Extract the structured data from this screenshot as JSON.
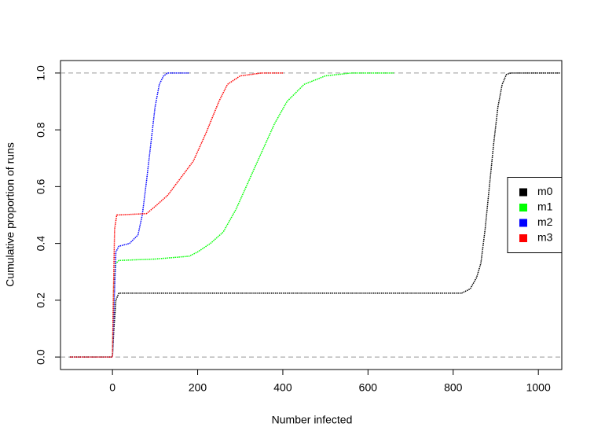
{
  "chart_data": {
    "type": "line",
    "xlabel": "Number infected",
    "ylabel": "Cumulative proportion of runs",
    "xlim": [
      -122,
      1055
    ],
    "ylim": [
      -0.044,
      1.044
    ],
    "xticks": [
      0,
      200,
      400,
      600,
      800,
      1000
    ],
    "yticks": [
      {
        "value": 0,
        "label": "0.0"
      },
      0.2,
      0.4,
      0.6,
      0.8,
      {
        "value": 1,
        "label": "1.0"
      }
    ],
    "hlines": [
      0,
      1
    ],
    "legend": "right",
    "series": [
      {
        "name": "m0",
        "color": "#000000",
        "x": [
          -100,
          0,
          3,
          8,
          15,
          820,
          840,
          855,
          865,
          875,
          885,
          895,
          905,
          915,
          925,
          935,
          1050
        ],
        "values": [
          0,
          0,
          0.09,
          0.2,
          0.225,
          0.225,
          0.24,
          0.28,
          0.33,
          0.45,
          0.6,
          0.75,
          0.88,
          0.96,
          0.995,
          1,
          1
        ]
      },
      {
        "name": "m1",
        "color": "#00ff00",
        "x": [
          -100,
          0,
          3,
          8,
          15,
          100,
          180,
          200,
          230,
          260,
          290,
          320,
          350,
          380,
          410,
          450,
          500,
          560,
          660
        ],
        "values": [
          0,
          0,
          0.25,
          0.33,
          0.34,
          0.345,
          0.355,
          0.37,
          0.4,
          0.44,
          0.52,
          0.62,
          0.72,
          0.82,
          0.9,
          0.96,
          0.99,
          1,
          1
        ]
      },
      {
        "name": "m2",
        "color": "#0000ff",
        "x": [
          -100,
          0,
          3,
          8,
          15,
          40,
          60,
          70,
          80,
          90,
          100,
          110,
          120,
          130,
          180
        ],
        "values": [
          0,
          0,
          0.15,
          0.37,
          0.39,
          0.4,
          0.43,
          0.5,
          0.62,
          0.75,
          0.88,
          0.96,
          0.99,
          1,
          1
        ]
      },
      {
        "name": "m3",
        "color": "#ff0000",
        "x": [
          -100,
          0,
          2,
          5,
          10,
          80,
          100,
          130,
          160,
          190,
          220,
          250,
          270,
          300,
          350,
          400
        ],
        "values": [
          0,
          0,
          0.2,
          0.45,
          0.5,
          0.505,
          0.53,
          0.57,
          0.63,
          0.69,
          0.79,
          0.9,
          0.96,
          0.99,
          1,
          1
        ]
      }
    ]
  }
}
